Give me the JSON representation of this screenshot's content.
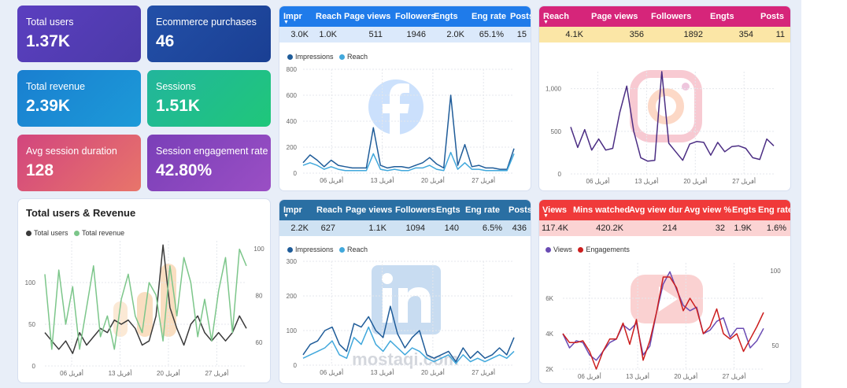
{
  "kpis": [
    {
      "label": "Total users",
      "value": "1.37K"
    },
    {
      "label": "Ecommerce purchases",
      "value": "46"
    },
    {
      "label": "Total revenue",
      "value": "2.39K"
    },
    {
      "label": "Sessions",
      "value": "1.51K"
    },
    {
      "label": "Avg session duration",
      "value": "128"
    },
    {
      "label": "Session engagement rate",
      "value": "42.80%"
    }
  ],
  "facebook": {
    "headers": [
      "Impr",
      "Reach",
      "Page views",
      "Followers",
      "Engts",
      "Eng rate",
      "Posts"
    ],
    "values": [
      "3.0K",
      "1.0K",
      "511",
      "1946",
      "2.0K",
      "65.1%",
      "15"
    ],
    "legend": [
      "Impressions",
      "Reach"
    ]
  },
  "instagram": {
    "headers": [
      "Reach",
      "Page views",
      "Followers",
      "Engts",
      "Posts"
    ],
    "values": [
      "4.1K",
      "356",
      "1892",
      "354",
      "11"
    ]
  },
  "linkedin": {
    "headers": [
      "Impr",
      "Reach",
      "Page views",
      "Followers",
      "Engts",
      "Eng rate",
      "Posts"
    ],
    "values": [
      "2.2K",
      "627",
      "1.1K",
      "1094",
      "140",
      "6.5%",
      "436"
    ],
    "legend": [
      "Impressions",
      "Reach"
    ]
  },
  "youtube": {
    "headers": [
      "Views",
      "Mins watched",
      "Avg view dur",
      "Avg view %",
      "Engts",
      "Eng rate"
    ],
    "values": [
      "117.4K",
      "420.2K",
      "214",
      "32",
      "1.9K",
      "1.6%"
    ],
    "legend": [
      "Views",
      "Engagements"
    ]
  },
  "users_revenue": {
    "title": "Total users & Revenue",
    "legend": [
      "Total users",
      "Total revenue"
    ]
  },
  "watermark": "mostaqi.com",
  "chart_data": [
    {
      "id": "facebook",
      "type": "line",
      "x_ticks": [
        "06 أفريل",
        "13 أفريل",
        "20 أفريل",
        "27 أفريل"
      ],
      "ylim": [
        0,
        800
      ],
      "y_ticks": [
        0,
        200,
        400,
        600,
        800
      ],
      "series": [
        {
          "name": "Impressions",
          "color": "#1f5c99",
          "values": [
            80,
            140,
            100,
            50,
            100,
            60,
            50,
            40,
            40,
            40,
            350,
            60,
            40,
            50,
            50,
            40,
            60,
            80,
            120,
            70,
            40,
            600,
            60,
            220,
            50,
            60,
            40,
            40,
            30,
            30,
            190
          ]
        },
        {
          "name": "Reach",
          "color": "#41a8dc",
          "values": [
            60,
            80,
            60,
            30,
            50,
            30,
            20,
            20,
            20,
            20,
            150,
            30,
            20,
            30,
            20,
            20,
            40,
            40,
            60,
            30,
            20,
            160,
            30,
            80,
            30,
            30,
            20,
            20,
            20,
            20,
            150
          ]
        }
      ]
    },
    {
      "id": "instagram",
      "type": "line",
      "x_ticks": [
        "06 أفريل",
        "13 أفريل",
        "20 أفريل",
        "27 أفريل"
      ],
      "ylim": [
        0,
        1200
      ],
      "y_ticks": [
        0,
        500,
        "1,000"
      ],
      "series": [
        {
          "name": "Reach",
          "color": "#4b2d83",
          "values": [
            550,
            310,
            520,
            280,
            410,
            280,
            300,
            720,
            1030,
            500,
            190,
            150,
            160,
            1230,
            360,
            260,
            160,
            350,
            380,
            370,
            220,
            370,
            260,
            320,
            330,
            300,
            190,
            170,
            410,
            330
          ]
        }
      ]
    },
    {
      "id": "linkedin",
      "type": "line",
      "x_ticks": [
        "06 أفريل",
        "13 أفريل",
        "20 أفريل",
        "27 أفريل"
      ],
      "ylim": [
        0,
        300
      ],
      "y_ticks": [
        0,
        100,
        200,
        300
      ],
      "series": [
        {
          "name": "Impressions",
          "color": "#1f5c99",
          "values": [
            30,
            60,
            70,
            100,
            110,
            60,
            40,
            120,
            110,
            140,
            100,
            80,
            170,
            90,
            50,
            80,
            100,
            30,
            20,
            30,
            40,
            10,
            50,
            20,
            40,
            20,
            30,
            50,
            30,
            80
          ]
        },
        {
          "name": "Reach",
          "color": "#41a8dc",
          "values": [
            20,
            30,
            40,
            50,
            70,
            30,
            20,
            80,
            60,
            110,
            60,
            40,
            70,
            50,
            30,
            50,
            40,
            20,
            10,
            20,
            30,
            5,
            30,
            10,
            20,
            10,
            20,
            30,
            20,
            40
          ]
        }
      ]
    },
    {
      "id": "youtube",
      "type": "line",
      "x_ticks": [
        "06 أفريل",
        "13 أفريل",
        "20 أفريل",
        "27 أفريل"
      ],
      "ylim": [
        2000,
        8000
      ],
      "y_ticks": [
        "2K",
        "4K",
        "6K"
      ],
      "y2_ticks": [
        50,
        100
      ],
      "series": [
        {
          "name": "Views",
          "color": "#6a4bb3",
          "values": [
            4000,
            3200,
            3600,
            3500,
            2800,
            2500,
            3000,
            3500,
            3700,
            4500,
            4200,
            4600,
            2800,
            3300,
            5200,
            6800,
            7500,
            6500,
            5600,
            5300,
            5500,
            4000,
            4200,
            4700,
            4900,
            3800,
            4300,
            4300,
            3200,
            3600,
            4300
          ]
        },
        {
          "name": "Engagements",
          "color": "#cc1e1e",
          "values": [
            4000,
            3500,
            3500,
            3600,
            3000,
            2000,
            3000,
            3700,
            3700,
            4600,
            3400,
            4800,
            2500,
            3600,
            5200,
            7200,
            7200,
            6600,
            5300,
            6000,
            5400,
            4000,
            4400,
            5400,
            4000,
            3700,
            4000,
            3000,
            3700,
            4400,
            5200
          ]
        }
      ]
    },
    {
      "id": "users_revenue",
      "type": "line",
      "x_ticks": [
        "06 أفريل",
        "13 أفريل",
        "20 أفريل",
        "27 أفريل"
      ],
      "ylim": [
        0,
        150
      ],
      "y_ticks": [
        0,
        50,
        100
      ],
      "y2_ticks": [
        60,
        80,
        100
      ],
      "series": [
        {
          "name": "Total users",
          "color": "#3a3a3a",
          "values": [
            40,
            30,
            20,
            30,
            15,
            40,
            25,
            35,
            45,
            40,
            55,
            50,
            55,
            45,
            25,
            30,
            60,
            145,
            70,
            45,
            25,
            50,
            60,
            40,
            30,
            40,
            30,
            40,
            60,
            45
          ]
        },
        {
          "name": "Total revenue",
          "color": "#7cc68a",
          "values": [
            110,
            20,
            115,
            50,
            95,
            20,
            70,
            120,
            35,
            60,
            20,
            80,
            110,
            60,
            40,
            100,
            85,
            30,
            120,
            60,
            130,
            100,
            35,
            80,
            30,
            90,
            130,
            40,
            140,
            120
          ]
        }
      ]
    }
  ]
}
